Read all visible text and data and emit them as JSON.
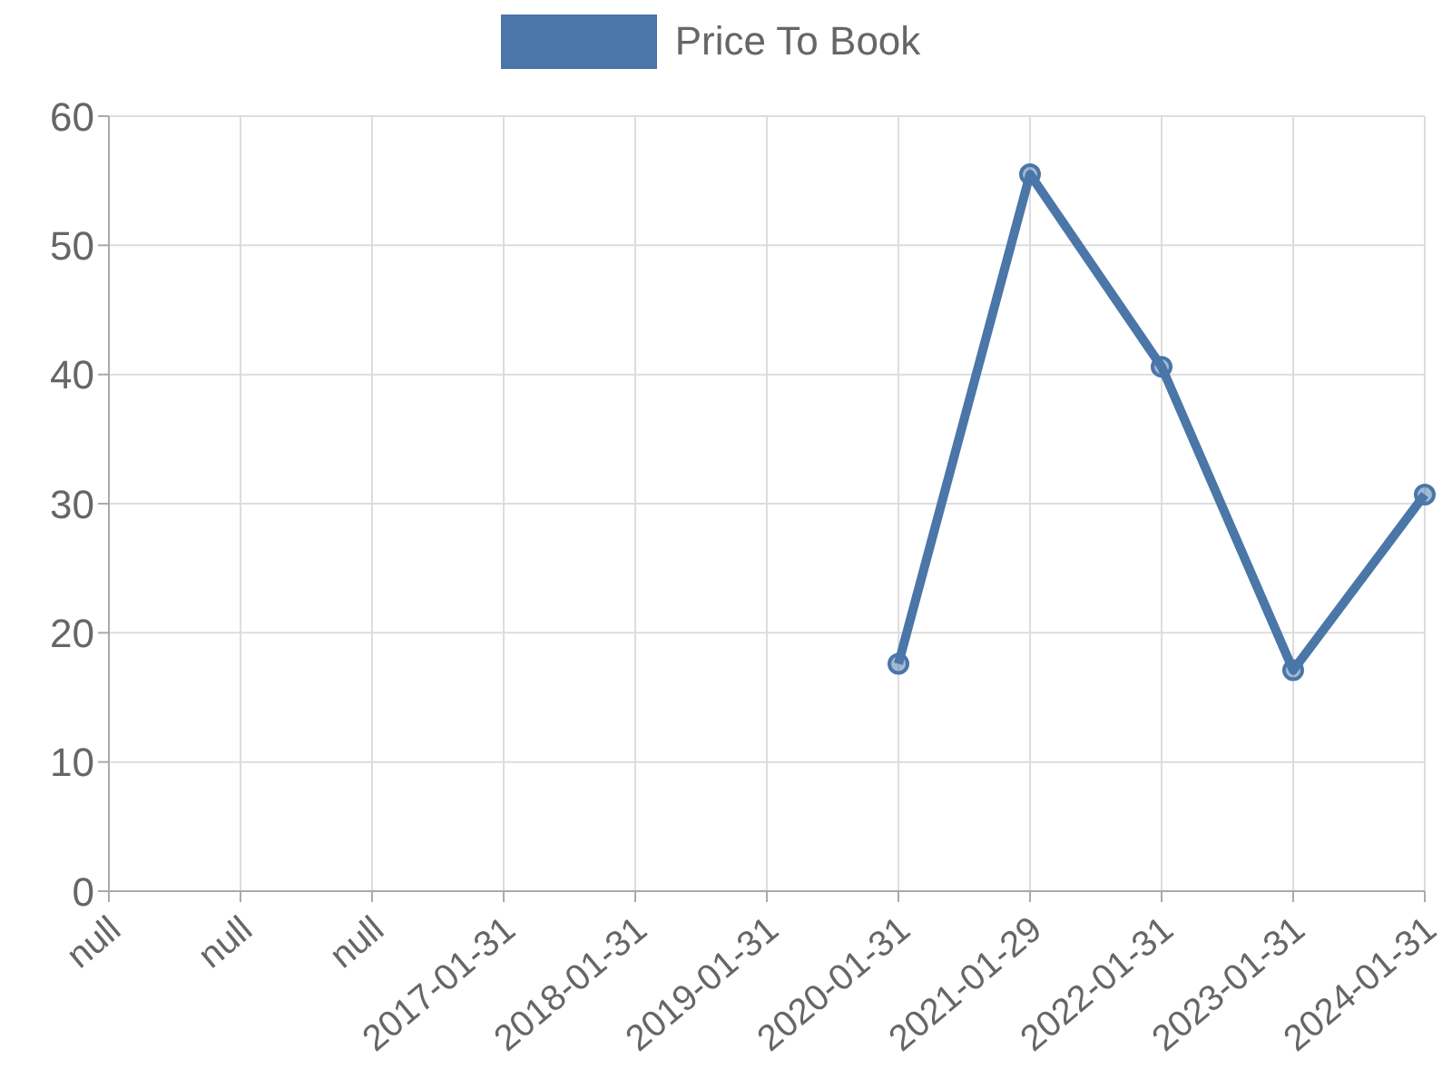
{
  "chart_data": {
    "type": "line",
    "categories": [
      "null",
      "null",
      "null",
      "2017-01-31",
      "2018-01-31",
      "2019-01-31",
      "2020-01-31",
      "2021-01-29",
      "2022-01-31",
      "2023-01-31",
      "2024-01-31"
    ],
    "series": [
      {
        "name": "Price To Book",
        "color": "#4a76a8",
        "values": [
          null,
          null,
          null,
          null,
          null,
          null,
          17.6,
          55.5,
          40.6,
          17.1,
          30.7
        ]
      }
    ],
    "ylim": [
      0,
      60
    ],
    "yticks": [
      0,
      10,
      20,
      30,
      40,
      50,
      60
    ],
    "grid": true,
    "legend": "top",
    "marker": "circle",
    "line_style": "solid"
  }
}
